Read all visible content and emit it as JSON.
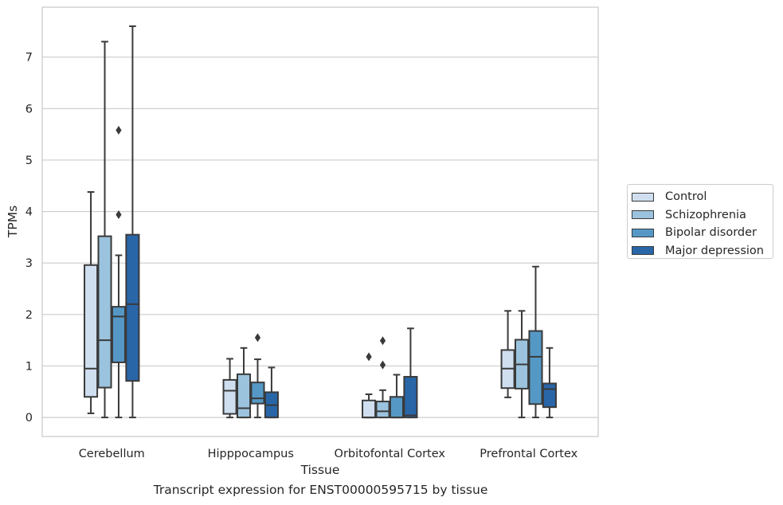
{
  "chart_data": {
    "type": "boxplot",
    "title": "",
    "caption": "Transcript expression for ENST00000595715 by tissue",
    "xlabel": "Tissue",
    "ylabel": "TPMs",
    "ylim": [
      -0.37,
      7.97
    ],
    "yticks": [
      "0",
      "1",
      "2",
      "3",
      "4",
      "5",
      "6",
      "7"
    ],
    "grid": "horizontal",
    "legend_position": "right",
    "categories": [
      "Cerebellum",
      "Hipppocampus",
      "Orbitofontal Cortex",
      "Prefrontal Cortex"
    ],
    "series": [
      {
        "name": "Control",
        "color": "#cfdff0",
        "boxes": [
          {
            "whislo": 0.08,
            "q1": 0.4,
            "med": 0.95,
            "q3": 2.96,
            "whishi": 4.38,
            "fliers": []
          },
          {
            "whislo": 0.0,
            "q1": 0.07,
            "med": 0.52,
            "q3": 0.73,
            "whishi": 1.14,
            "fliers": []
          },
          {
            "whislo": 0.0,
            "q1": 0.0,
            "med": 0.0,
            "q3": 0.33,
            "whishi": 0.45,
            "fliers": [
              1.18
            ]
          },
          {
            "whislo": 0.39,
            "q1": 0.57,
            "med": 0.95,
            "q3": 1.31,
            "whishi": 2.07,
            "fliers": []
          }
        ]
      },
      {
        "name": "Schizophrenia",
        "color": "#9bc3dd",
        "boxes": [
          {
            "whislo": 0.0,
            "q1": 0.58,
            "med": 1.5,
            "q3": 3.52,
            "whishi": 7.3,
            "fliers": []
          },
          {
            "whislo": 0.0,
            "q1": 0.0,
            "med": 0.18,
            "q3": 0.84,
            "whishi": 1.35,
            "fliers": []
          },
          {
            "whislo": 0.0,
            "q1": 0.0,
            "med": 0.12,
            "q3": 0.31,
            "whishi": 0.53,
            "fliers": [
              1.02,
              1.49
            ]
          },
          {
            "whislo": 0.0,
            "q1": 0.56,
            "med": 1.03,
            "q3": 1.51,
            "whishi": 2.07,
            "fliers": []
          }
        ]
      },
      {
        "name": "Bipolar disorder",
        "color": "#5598c6",
        "boxes": [
          {
            "whislo": 0.0,
            "q1": 1.07,
            "med": 1.96,
            "q3": 2.15,
            "whishi": 3.15,
            "fliers": [
              3.94,
              5.58
            ]
          },
          {
            "whislo": 0.0,
            "q1": 0.27,
            "med": 0.37,
            "q3": 0.68,
            "whishi": 1.13,
            "fliers": [
              1.55
            ]
          },
          {
            "whislo": 0.0,
            "q1": 0.0,
            "med": 0.0,
            "q3": 0.4,
            "whishi": 0.83,
            "fliers": []
          },
          {
            "whislo": 0.0,
            "q1": 0.26,
            "med": 1.18,
            "q3": 1.68,
            "whishi": 2.93,
            "fliers": []
          }
        ]
      },
      {
        "name": "Major depression",
        "color": "#2966a8",
        "boxes": [
          {
            "whislo": 0.0,
            "q1": 0.71,
            "med": 2.2,
            "q3": 3.55,
            "whishi": 7.6,
            "fliers": []
          },
          {
            "whislo": 0.0,
            "q1": 0.0,
            "med": 0.24,
            "q3": 0.49,
            "whishi": 0.97,
            "fliers": []
          },
          {
            "whislo": 0.0,
            "q1": 0.0,
            "med": 0.04,
            "q3": 0.79,
            "whishi": 1.73,
            "fliers": []
          },
          {
            "whislo": 0.0,
            "q1": 0.2,
            "med": 0.55,
            "q3": 0.66,
            "whishi": 1.35,
            "fliers": []
          }
        ]
      }
    ]
  }
}
